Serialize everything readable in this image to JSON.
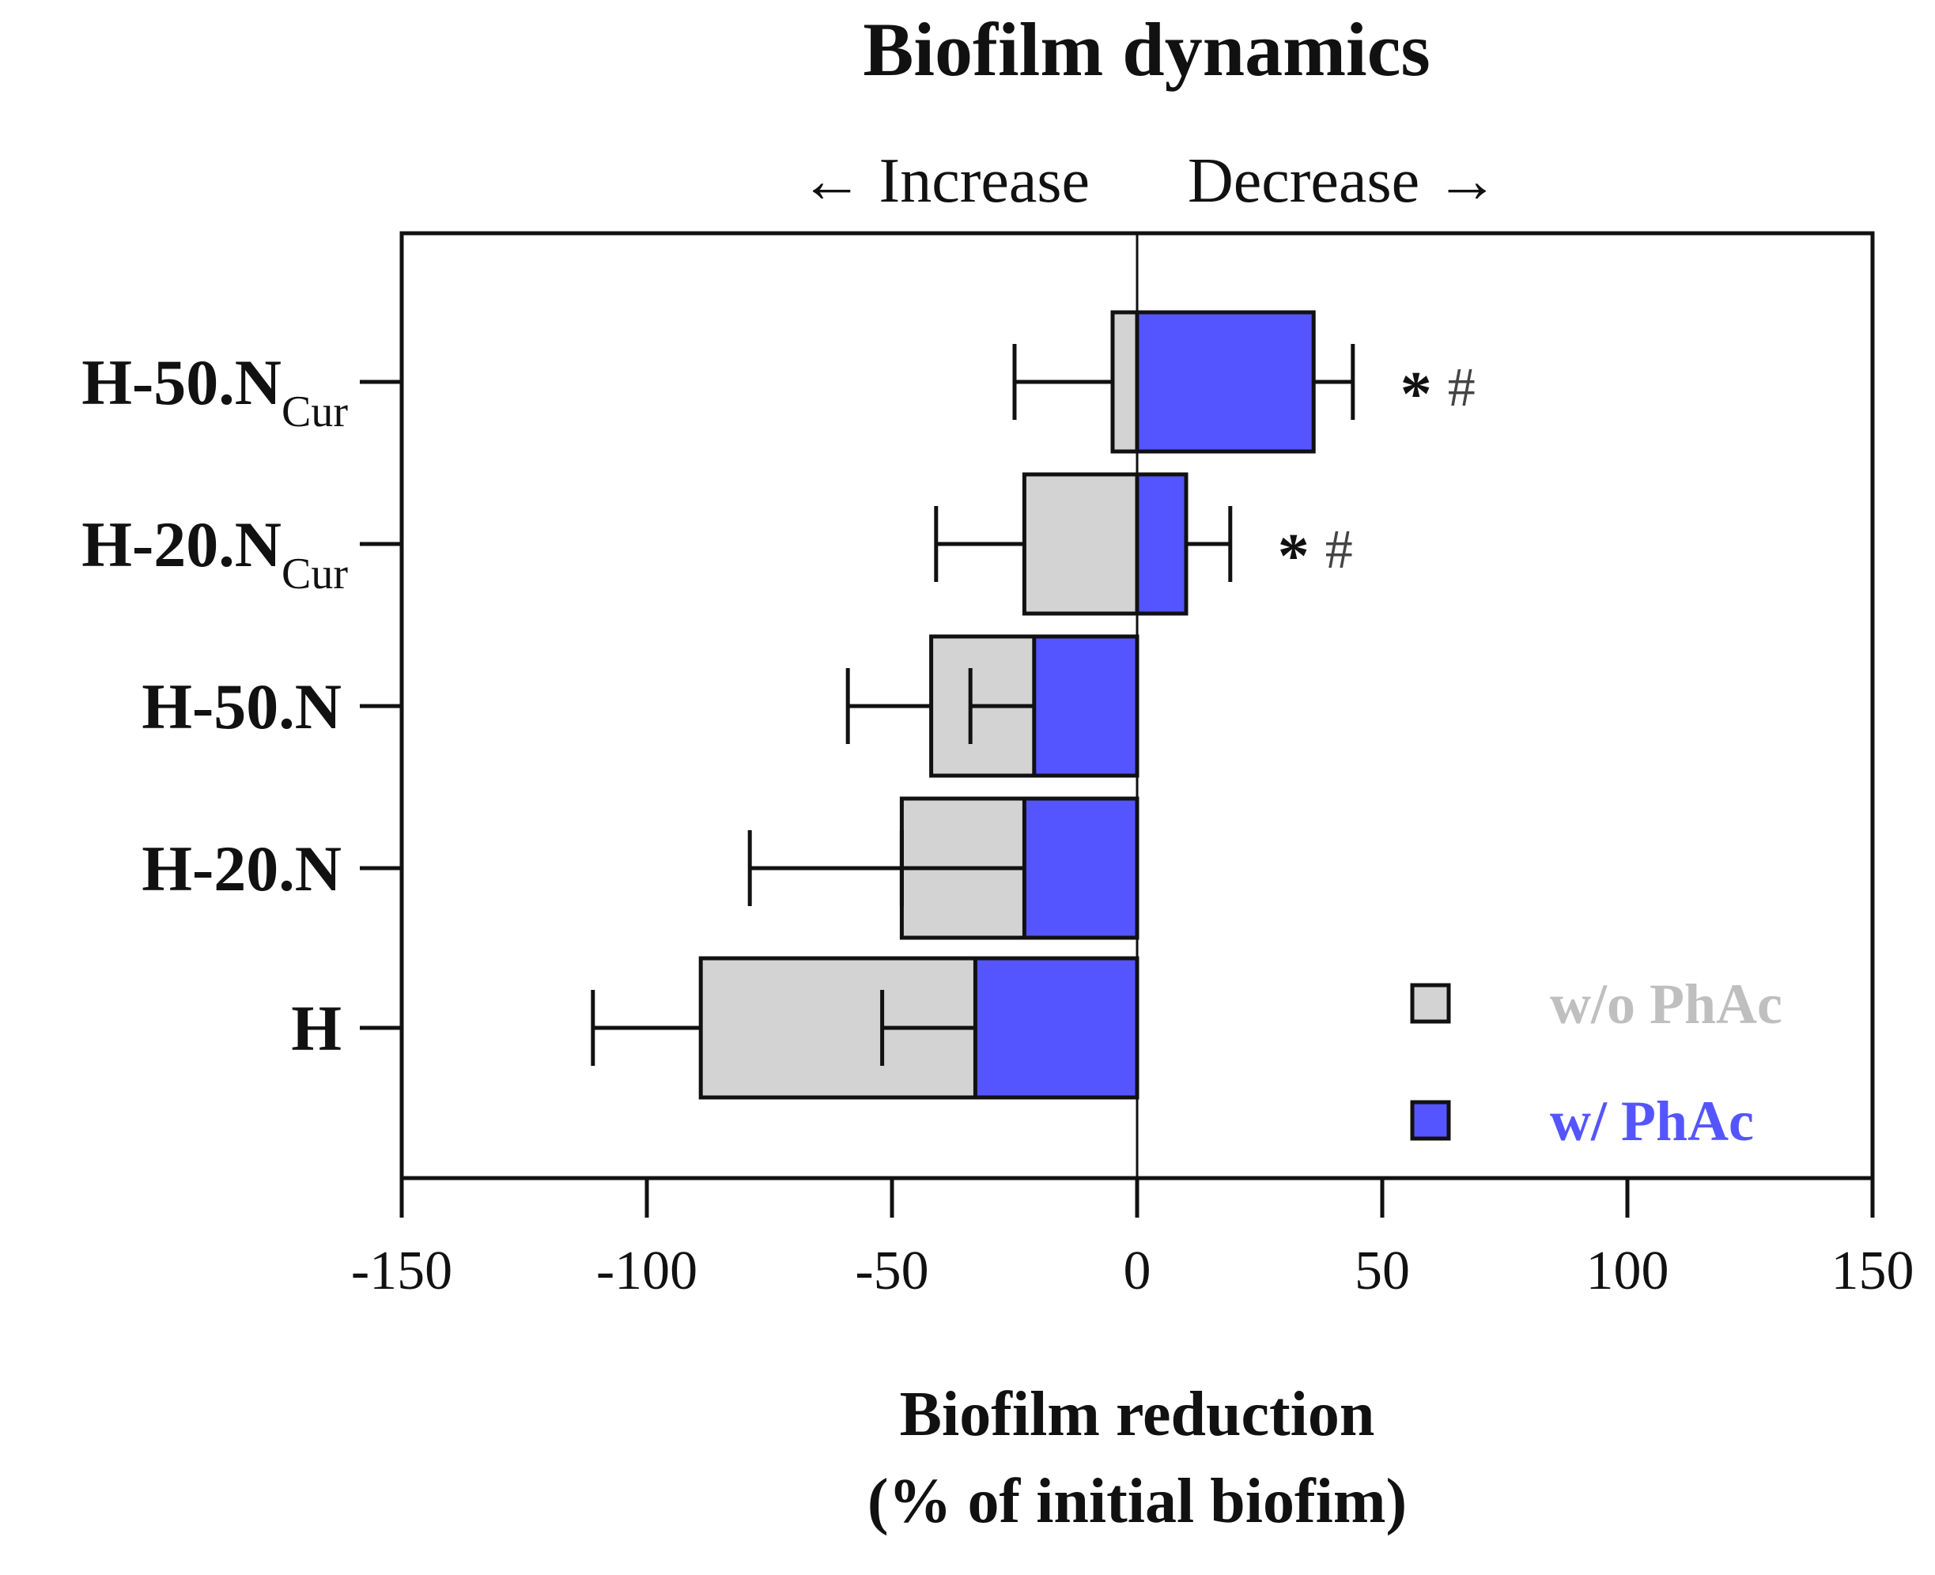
{
  "chart_data": {
    "type": "bar",
    "orientation": "horizontal",
    "title": "Biofilm dynamics",
    "direction_labels": {
      "left": "← Increase",
      "right": "Decrease →"
    },
    "xlabel_line1": "Biofilm reduction",
    "xlabel_line2": "(% of initial biofim)",
    "xlim": [
      -150,
      150
    ],
    "xticks": [
      -150,
      -100,
      -50,
      0,
      50,
      100,
      150
    ],
    "xtick_labels": [
      "-150",
      "-100",
      "-50",
      "0",
      "50",
      "100",
      "150"
    ],
    "categories": [
      {
        "main": "H-50.N",
        "sub": "Cur"
      },
      {
        "main": "H-20.N",
        "sub": "Cur"
      },
      {
        "main": "H-50.N",
        "sub": ""
      },
      {
        "main": "H-20.N",
        "sub": ""
      },
      {
        "main": "H",
        "sub": ""
      }
    ],
    "series": [
      {
        "name": "w/o PhAc",
        "color": "#d3d3d3",
        "values": [
          -5,
          -23,
          -42,
          -48,
          -89
        ],
        "errors": [
          20,
          18,
          17,
          31,
          22
        ]
      },
      {
        "name": "w/ PhAc",
        "color": "#5555ff",
        "values": [
          36,
          10,
          -21,
          -23,
          -33
        ],
        "errors": [
          8,
          9,
          13,
          25,
          19
        ]
      }
    ],
    "annotations": [
      {
        "category_index": 0,
        "star": "*",
        "hash": "#"
      },
      {
        "category_index": 1,
        "star": "*",
        "hash": "#"
      }
    ],
    "legend": {
      "position": "bottom-right",
      "text_colors": [
        "#bfbfbf",
        "#5555ff"
      ]
    }
  }
}
